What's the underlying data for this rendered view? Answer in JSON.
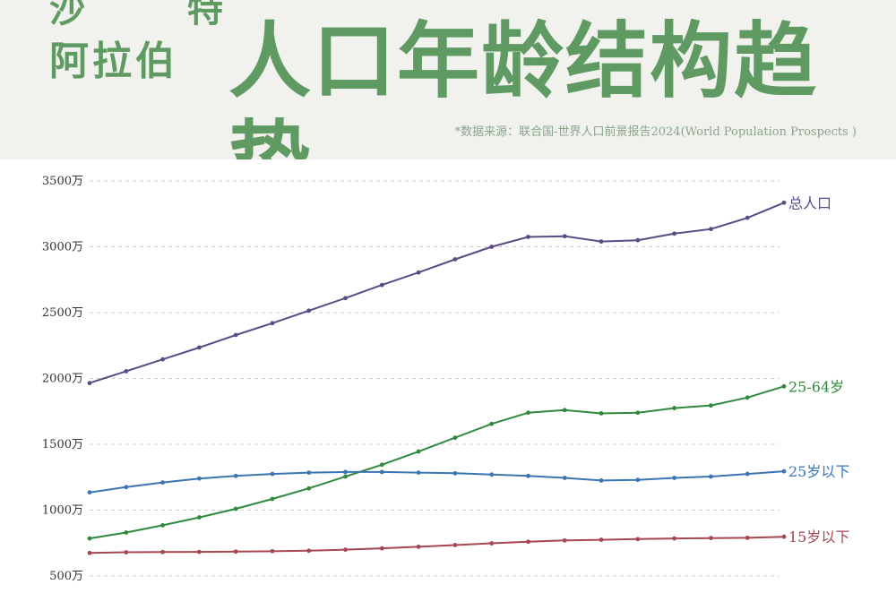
{
  "header": {
    "title_top": "沙 特",
    "title_country": "阿拉伯",
    "title_main": "人口年龄结构趋势",
    "source": "*数据来源：联合国-世界人口前景报告2024(World Population Prospects )"
  },
  "chart_data": {
    "type": "line",
    "title": "阿拉伯人口年龄结构趋势",
    "ylim": [
      500,
      3500
    ],
    "yticks": [
      500,
      1000,
      1500,
      2000,
      2500,
      3000,
      3500
    ],
    "ytick_labels": [
      "500万",
      "1000万",
      "1500万",
      "2000万",
      "2500万",
      "3000万",
      "3500万"
    ],
    "grid": true,
    "x": [
      1,
      2,
      3,
      4,
      5,
      6,
      7,
      8,
      9,
      10,
      11,
      12,
      13,
      14,
      15,
      16,
      17,
      18,
      19,
      20
    ],
    "series": [
      {
        "name": "总人口",
        "color": "#5b4a86",
        "values": [
          1965,
          2055,
          2145,
          2235,
          2330,
          2420,
          2515,
          2610,
          2710,
          2805,
          2905,
          3000,
          3075,
          3080,
          3040,
          3050,
          3100,
          3135,
          3220,
          3335
        ]
      },
      {
        "name": "25-64岁",
        "color": "#2f8a3d",
        "values": [
          785,
          830,
          885,
          945,
          1010,
          1085,
          1165,
          1255,
          1345,
          1445,
          1550,
          1655,
          1740,
          1760,
          1735,
          1740,
          1775,
          1795,
          1855,
          1940
        ]
      },
      {
        "name": "25岁以下",
        "color": "#3a74b2",
        "values": [
          1135,
          1175,
          1210,
          1240,
          1260,
          1275,
          1285,
          1290,
          1290,
          1285,
          1280,
          1270,
          1260,
          1245,
          1225,
          1230,
          1245,
          1255,
          1275,
          1295
        ]
      },
      {
        "name": "15岁以下",
        "color": "#a64651",
        "values": [
          675,
          680,
          682,
          683,
          685,
          688,
          692,
          700,
          710,
          722,
          735,
          748,
          760,
          770,
          775,
          780,
          785,
          788,
          790,
          798
        ]
      }
    ]
  }
}
